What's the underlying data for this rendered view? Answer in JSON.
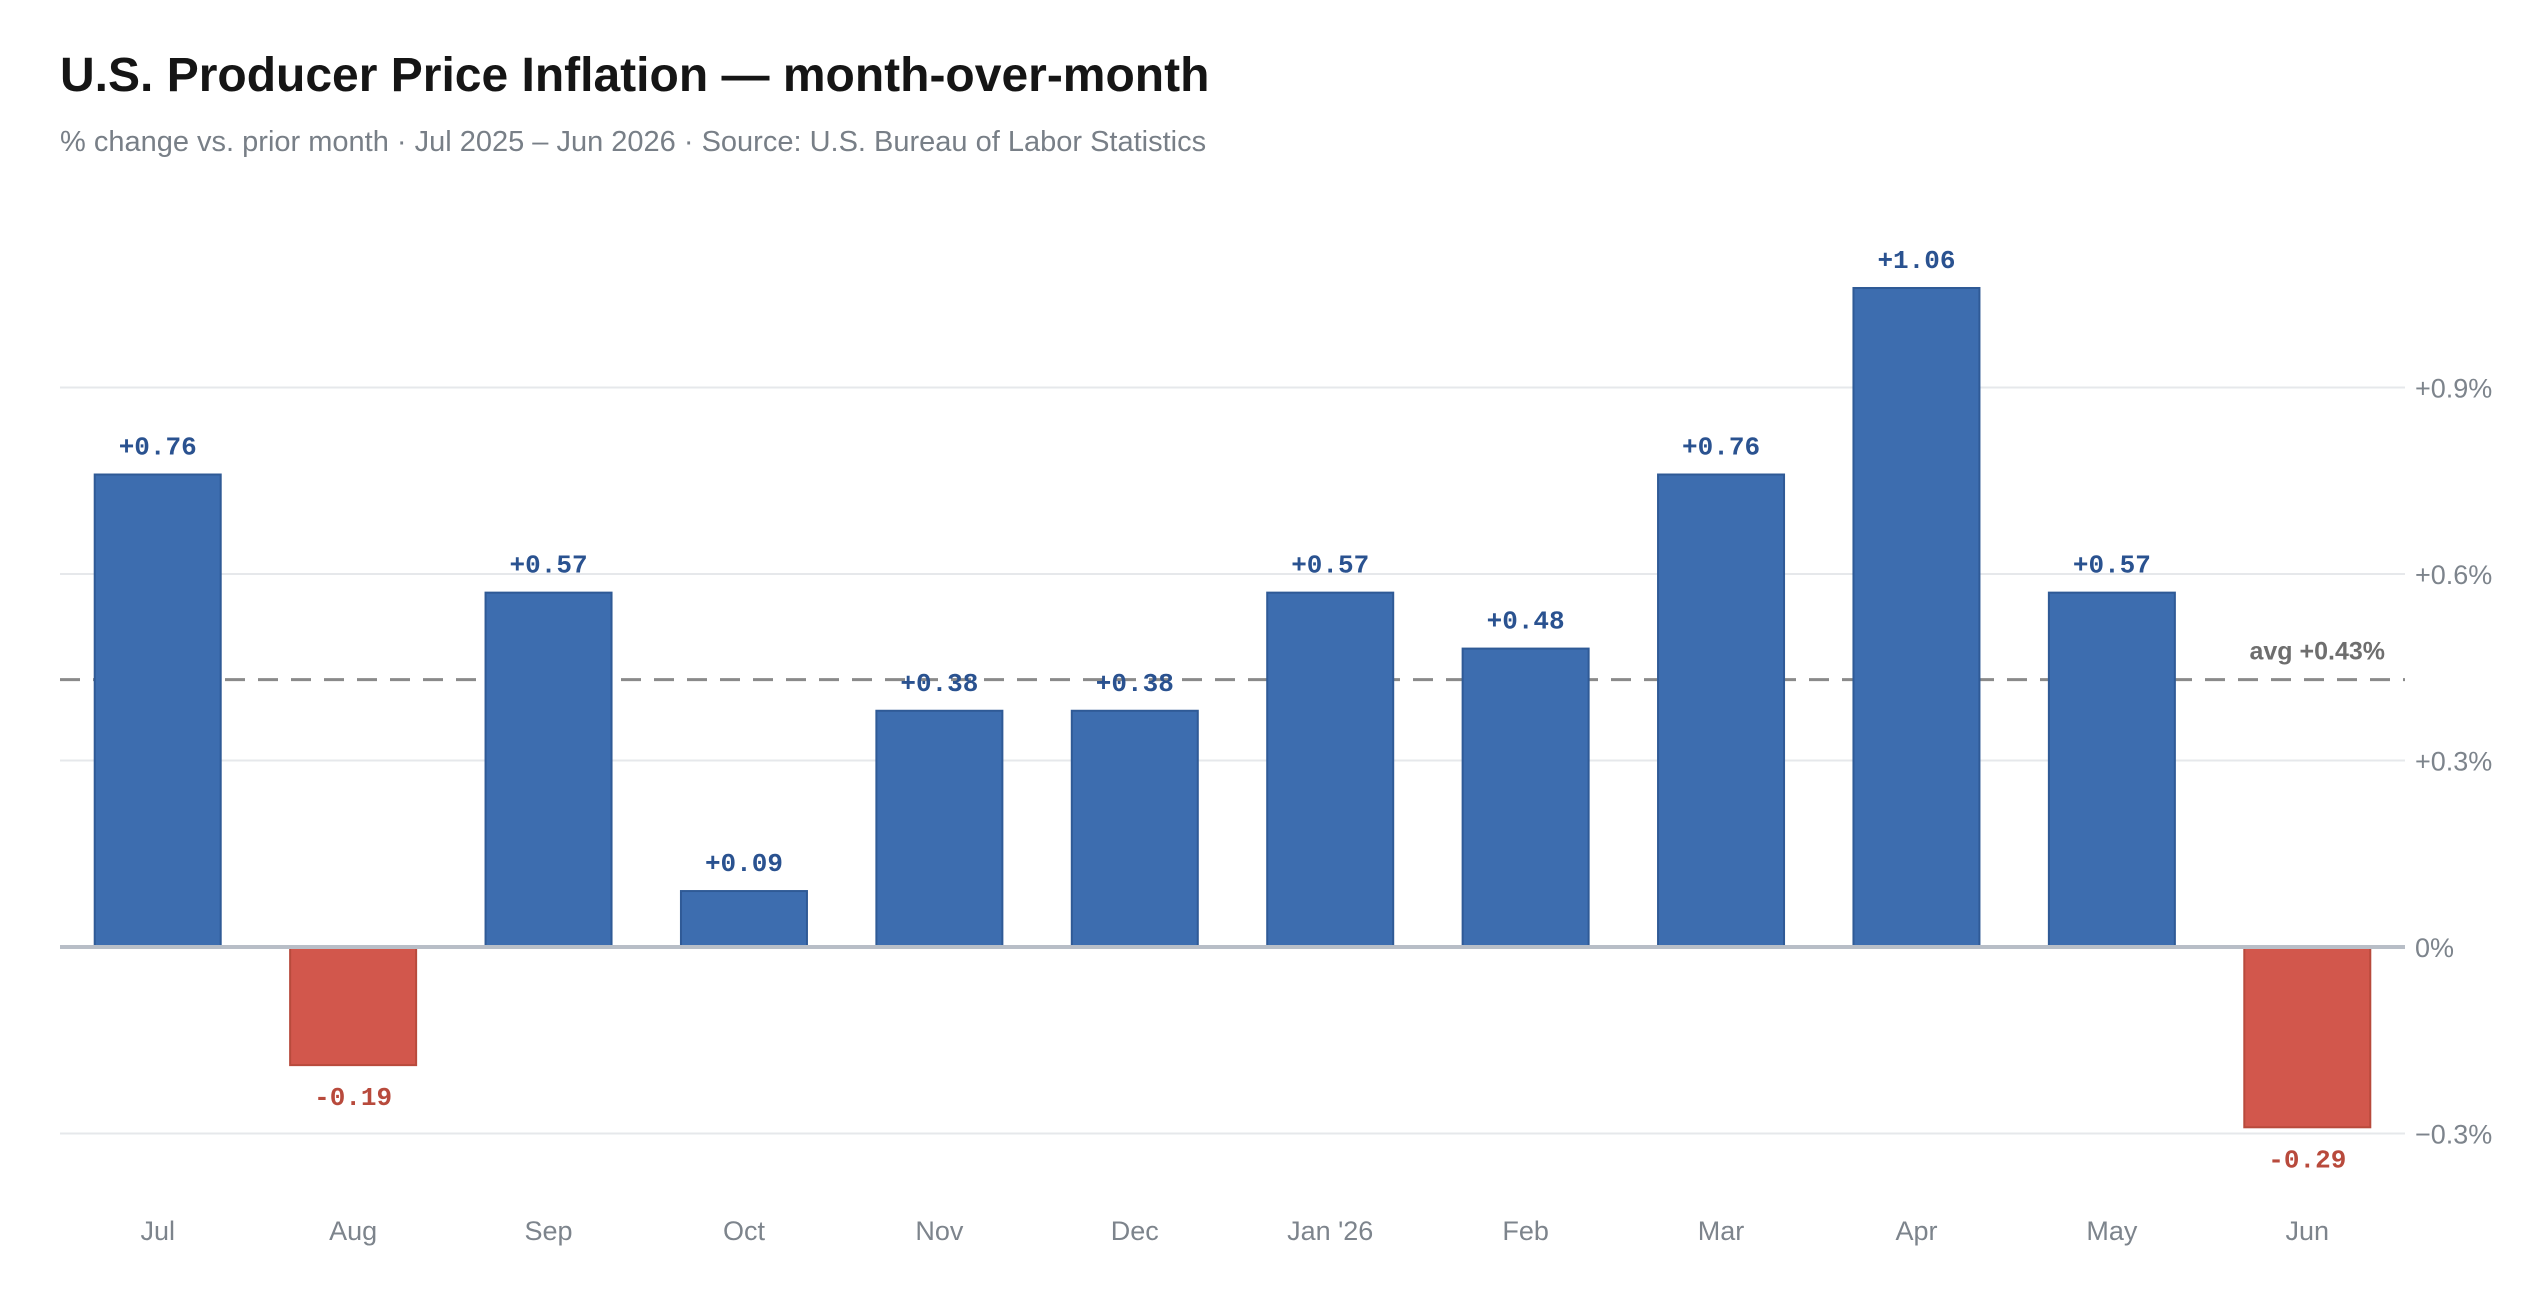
{
  "header": {
    "title": "U.S. Producer Price Inflation — month-over-month",
    "subtitle": "% change vs. prior month · Jul 2025 – Jun 2026 · Source: U.S. Bureau of Labor Statistics"
  },
  "colors": {
    "positive": "#3d6daf",
    "positive_label": "#2a5290",
    "negative": "#d2574c",
    "negative_label": "#b84a3c"
  },
  "chart_data": {
    "type": "bar",
    "title": "U.S. Producer Price Inflation — month-over-month",
    "subtitle": "% change vs. prior month · Jul 2025 – Jun 2026 · Source: U.S. Bureau of Labor Statistics",
    "categories": [
      "Jul",
      "Aug",
      "Sep",
      "Oct",
      "Nov",
      "Dec",
      "Jan '26",
      "Feb",
      "Mar",
      "Apr",
      "May",
      "Jun"
    ],
    "values": [
      0.76,
      -0.19,
      0.57,
      0.09,
      0.38,
      0.38,
      0.57,
      0.48,
      0.76,
      1.06,
      0.57,
      -0.29
    ],
    "value_labels": [
      "+0.76",
      "-0.19",
      "+0.57",
      "+0.09",
      "+0.38",
      "+0.38",
      "+0.57",
      "+0.48",
      "+0.76",
      "+1.06",
      "+0.57",
      "-0.29"
    ],
    "ylim": [
      -0.3,
      1.06
    ],
    "yticks": [
      {
        "value": 0.9,
        "label": "+0.9%"
      },
      {
        "value": 0.6,
        "label": "+0.6%"
      },
      {
        "value": 0.3,
        "label": "+0.3%"
      },
      {
        "value": 0,
        "label": "0%"
      },
      {
        "value": -0.3,
        "label": "−0.3%"
      }
    ],
    "average": {
      "value": 0.43,
      "label": "avg +0.43%"
    },
    "grid": true,
    "y_axis_position": "right",
    "legend": "none"
  }
}
